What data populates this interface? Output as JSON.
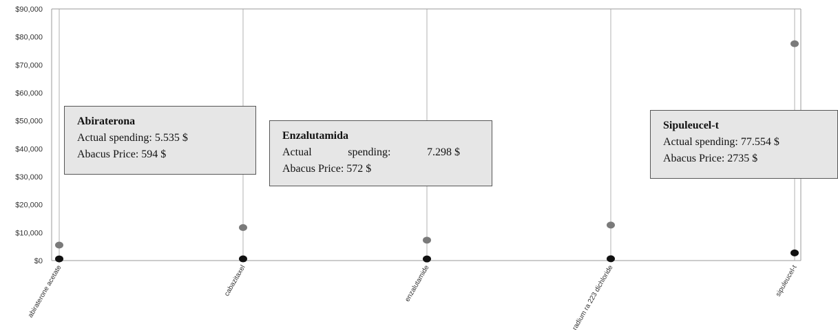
{
  "chart_data": {
    "type": "scatter",
    "categories": [
      "abiraterone acetate",
      "cabazitaxel",
      "enzalutamide",
      "radium ra 223 dichloride",
      "sipuleucel-t"
    ],
    "series": [
      {
        "color": "#7a7a7a",
        "values": [
          5535,
          11800,
          7298,
          12700,
          77554
        ]
      },
      {
        "color": "#111111",
        "values": [
          594,
          600,
          572,
          650,
          2735
        ]
      }
    ],
    "yticks": [
      "$0",
      "$10,000",
      "$20,000",
      "$30,000",
      "$40,000",
      "$50,000",
      "$60,000",
      "$70,000",
      "$80,000",
      "$90,000"
    ],
    "ylim": [
      0,
      90000
    ],
    "grid": "vertical",
    "annotations": [
      {
        "title": "Abiraterona",
        "spending_label": "Actual spending:",
        "spending_value": "5.535 $",
        "price": "Abacus Price: 594 $"
      },
      {
        "title": "Enzalutamida",
        "spending_word1": "Actual",
        "spending_word2": "spending:",
        "spending_value": "7.298 $",
        "price": "Abacus Price: 572 $"
      },
      {
        "title": "Sipuleucel-t",
        "spending_label": "Actual spending:",
        "spending_value": "77.554 $",
        "price": "Abacus Price: 2735 $"
      }
    ]
  }
}
